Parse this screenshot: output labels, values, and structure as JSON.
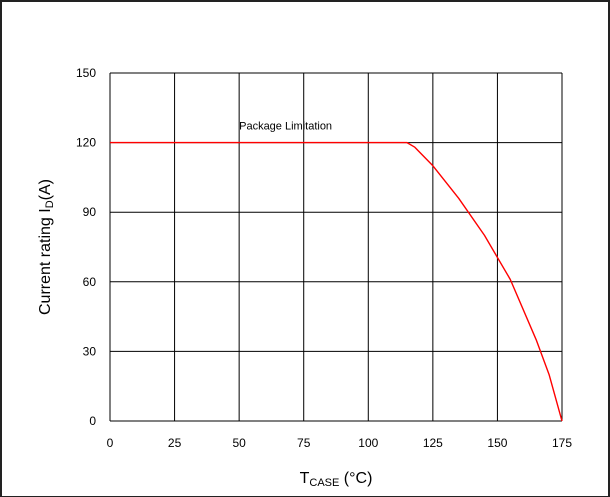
{
  "chart_data": {
    "type": "line",
    "xlabel": {
      "main": "T",
      "sub": "CASE",
      "unit": " (°C)"
    },
    "ylabel": {
      "main": "Current rating I",
      "sub": "D",
      "unit": "(A)"
    },
    "xlim": [
      0,
      175
    ],
    "ylim": [
      0,
      150
    ],
    "x_ticks": [
      0,
      25,
      50,
      75,
      100,
      125,
      150,
      175
    ],
    "y_ticks": [
      0,
      30,
      60,
      90,
      120,
      150
    ],
    "grid": true,
    "annotations": [
      {
        "text": "Package Limitation"
      }
    ],
    "series": [
      {
        "color": "#ff0000",
        "x": [
          0,
          25,
          50,
          75,
          100,
          115,
          118,
          125,
          135,
          145,
          155,
          165,
          170,
          175
        ],
        "y": [
          120,
          120,
          120,
          120,
          120,
          120,
          118,
          110,
          96,
          80,
          61,
          35,
          20,
          0
        ]
      }
    ]
  }
}
